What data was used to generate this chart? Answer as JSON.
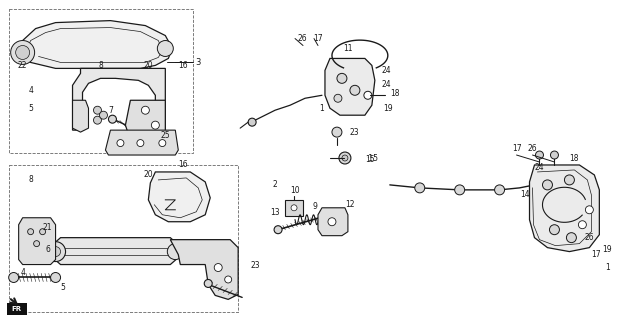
{
  "bg_color": "#ffffff",
  "line_color": "#1a1a1a",
  "fig_width": 6.2,
  "fig_height": 3.2,
  "dpi": 100
}
